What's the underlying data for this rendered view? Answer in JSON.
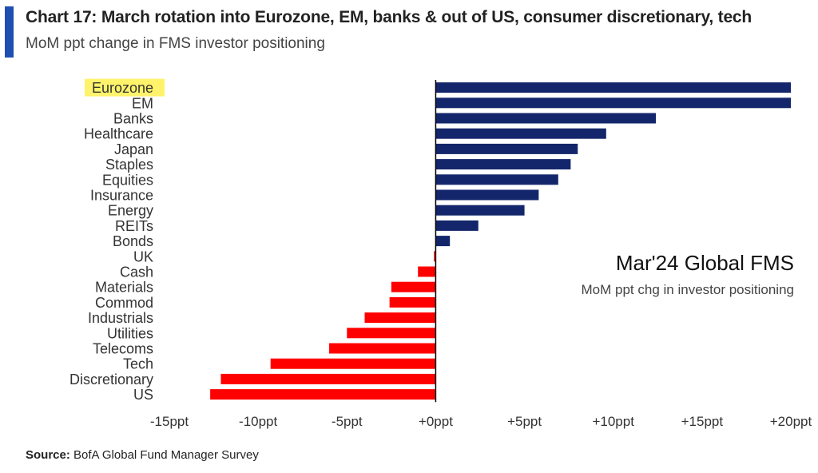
{
  "header": {
    "title": "Chart 17: March rotation into Eurozone, EM, banks & out of US, consumer discretionary, tech",
    "subtitle": "MoM ppt change in FMS investor positioning",
    "accent_color": "#1f4fb0"
  },
  "annotation": {
    "title": "Mar'24 Global FMS",
    "subtitle": "MoM ppt chg in investor positioning"
  },
  "source": {
    "label": "Source:",
    "text": " BofA Global Fund Manager Survey"
  },
  "colors": {
    "positive": "#14266b",
    "negative": "#ff0000",
    "highlight": "#fff36b",
    "axis": "#000000"
  },
  "chart_data": {
    "type": "bar",
    "orientation": "horizontal",
    "categories": [
      "Eurozone",
      "EM",
      "Banks",
      "Healthcare",
      "Japan",
      "Staples",
      "Equities",
      "Insurance",
      "Energy",
      "REITs",
      "Bonds",
      "UK",
      "Cash",
      "Materials",
      "Commod",
      "Industrials",
      "Utilities",
      "Telecoms",
      "Tech",
      "Discretionary",
      "US"
    ],
    "values": [
      20,
      20,
      12.4,
      9.6,
      8,
      7.6,
      6.9,
      5.8,
      5,
      2.4,
      0.8,
      -0.1,
      -1,
      -2.5,
      -2.6,
      -4,
      -5,
      -6,
      -9.3,
      -12.1,
      -12.7
    ],
    "highlighted_category": "Eurozone",
    "xlim": [
      -15,
      20
    ],
    "xticks": [
      -15,
      -10,
      -5,
      0,
      5,
      10,
      15,
      20
    ],
    "xtick_labels": [
      "-15ppt",
      "-10ppt",
      "-5ppt",
      "+0ppt",
      "+5ppt",
      "+10ppt",
      "+15ppt",
      "+20ppt"
    ],
    "grid": false,
    "legend": "none"
  }
}
